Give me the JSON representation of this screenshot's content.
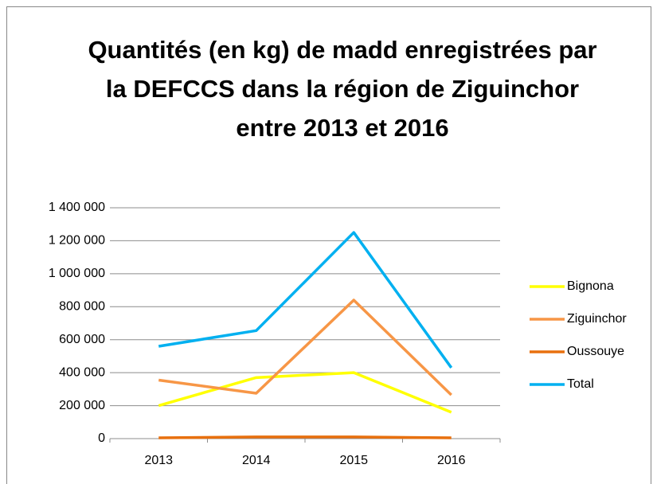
{
  "chart_data": {
    "type": "line",
    "title": "Quantités (en kg) de madd enregistrées par la DEFCCS dans la région de Ziguinchor entre 2013 et 2016",
    "categories": [
      "2013",
      "2014",
      "2015",
      "2016"
    ],
    "series": [
      {
        "name": "Bignona",
        "color": "#ffff00",
        "values": [
          200000,
          370000,
          400000,
          160000
        ]
      },
      {
        "name": "Ziguinchor",
        "color": "#f79646",
        "values": [
          355000,
          275000,
          840000,
          265000
        ]
      },
      {
        "name": "Oussouye",
        "color": "#e8700e",
        "values": [
          5000,
          10000,
          10000,
          5000
        ]
      },
      {
        "name": "Total",
        "color": "#00b0f0",
        "values": [
          560000,
          655000,
          1250000,
          430000
        ]
      }
    ],
    "ylim": [
      0,
      1400000
    ],
    "yticks": [
      0,
      {
        "value": 200000,
        "label": "200 000"
      },
      {
        "value": 400000,
        "label": "400 000"
      },
      {
        "value": 600000,
        "label": "600 000"
      },
      {
        "value": 800000,
        "label": "800 000"
      },
      {
        "value": 1000000,
        "label": "1 000 000"
      },
      {
        "value": 1200000,
        "label": "1 200 000"
      },
      {
        "value": 1400000,
        "label": "1 400 000"
      }
    ],
    "grid": true,
    "legend": "right"
  }
}
